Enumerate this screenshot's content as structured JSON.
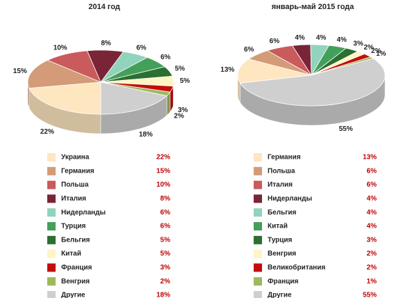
{
  "chart_data": [
    {
      "type": "pie",
      "title": "2014 год",
      "categories": [
        "Украина",
        "Германия",
        "Польша",
        "Италия",
        "Нидерланды",
        "Турция",
        "Бельгия",
        "Китай",
        "Франция",
        "Венгрия",
        "Другие"
      ],
      "values": [
        22,
        15,
        10,
        8,
        6,
        6,
        5,
        5,
        3,
        2,
        18
      ],
      "value_labels": [
        "22%",
        "15%",
        "10%",
        "8%",
        "6%",
        "6%",
        "5%",
        "5%",
        "3%",
        "2%",
        "18%"
      ],
      "colors": [
        "#fde6c0",
        "#d39b78",
        "#c95b5c",
        "#7a2537",
        "#92d3bd",
        "#43a05b",
        "#2b6f31",
        "#fff4c4",
        "#c30d0d",
        "#9cb95c",
        "#cfcfcf"
      ]
    },
    {
      "type": "pie",
      "title": "январь-май 2015 года",
      "categories": [
        "Германия",
        "Польша",
        "Италия",
        "Нидерланды",
        "Бельгия",
        "Китай",
        "Турция",
        "Венгрия",
        "Великобритания",
        "Франция",
        "Другие"
      ],
      "values": [
        13,
        6,
        6,
        4,
        4,
        4,
        3,
        2,
        2,
        1,
        55
      ],
      "value_labels": [
        "13%",
        "6%",
        "6%",
        "4%",
        "4%",
        "4%",
        "3%",
        "2%",
        "2%",
        "1%",
        "55%"
      ],
      "colors": [
        "#fde6c0",
        "#d39b78",
        "#c95b5c",
        "#7a2537",
        "#92d3bd",
        "#43a05b",
        "#2b6f31",
        "#fff4c4",
        "#c30d0d",
        "#9cb95c",
        "#cfcfcf"
      ]
    }
  ]
}
